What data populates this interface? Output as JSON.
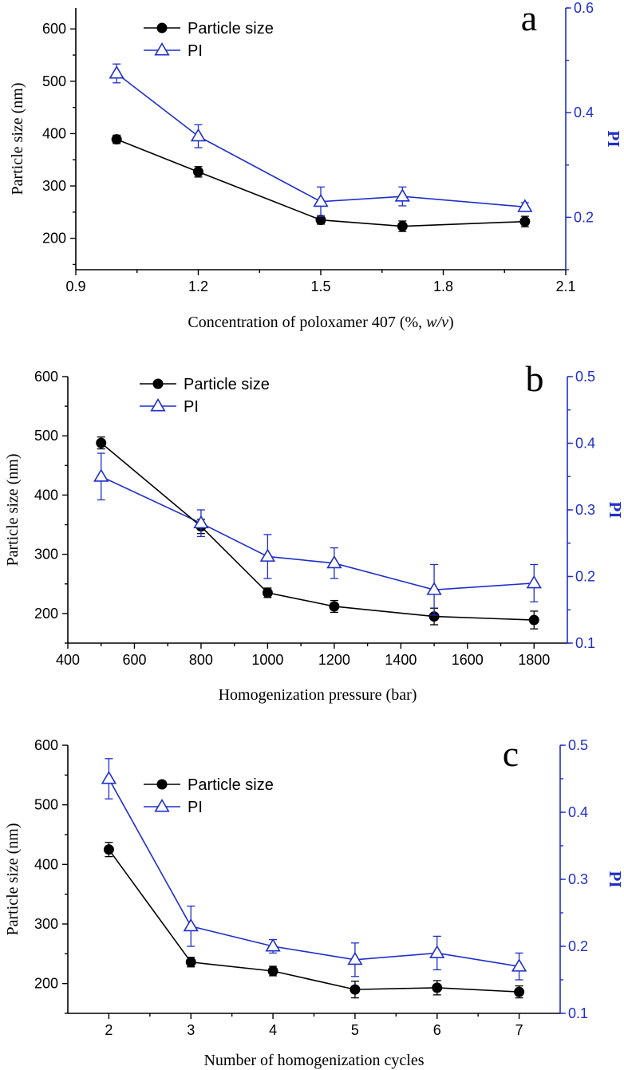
{
  "chart_data": [
    {
      "type": "line",
      "panel_label": "a",
      "xlabel_parts": [
        "Concentration of poloxamer 407 (%, ",
        "w/v",
        ")"
      ],
      "ylabel": "Particle size (nm)",
      "y2label": "PI",
      "xlim": [
        0.9,
        2.1
      ],
      "ylim": [
        140,
        640
      ],
      "y2lim": [
        0.1,
        0.6
      ],
      "x_ticks": [
        "0.9",
        "1.2",
        "1.5",
        "1.8",
        "2.1"
      ],
      "y_ticks": [
        "200",
        "300",
        "400",
        "500",
        "600"
      ],
      "y2_ticks": [
        "0.2",
        "0.4",
        "0.6"
      ],
      "x": [
        1.0,
        1.2,
        1.5,
        1.7,
        2.0
      ],
      "series": [
        {
          "name": "Particle size",
          "axis": "left",
          "values": [
            389,
            327,
            235,
            223,
            232
          ],
          "errors": [
            8,
            10,
            8,
            10,
            10
          ]
        },
        {
          "name": "PI",
          "axis": "right",
          "values": [
            0.475,
            0.355,
            0.23,
            0.24,
            0.22
          ],
          "errors": [
            0.018,
            0.022,
            0.028,
            0.018,
            0.008
          ]
        }
      ],
      "legend": [
        "Particle size",
        "PI"
      ]
    },
    {
      "type": "line",
      "panel_label": "b",
      "xlabel_parts": [
        "Homogenization pressure (bar)"
      ],
      "ylabel": "Particle size (nm)",
      "y2label": "PI",
      "xlim": [
        400,
        1900
      ],
      "ylim": [
        150,
        600
      ],
      "y2lim": [
        0.1,
        0.5
      ],
      "x_ticks": [
        "400",
        "600",
        "800",
        "1000",
        "1200",
        "1400",
        "1600",
        "1800"
      ],
      "y_ticks": [
        "200",
        "300",
        "400",
        "500",
        "600"
      ],
      "y2_ticks": [
        "0.1",
        "0.2",
        "0.3",
        "0.4",
        "0.5"
      ],
      "x": [
        500,
        800,
        1000,
        1200,
        1500,
        1800
      ],
      "series": [
        {
          "name": "Particle size",
          "axis": "left",
          "values": [
            488,
            347,
            235,
            212,
            195,
            189
          ],
          "errors": [
            10,
            12,
            8,
            10,
            14,
            15
          ]
        },
        {
          "name": "PI",
          "axis": "right",
          "values": [
            0.35,
            0.28,
            0.23,
            0.22,
            0.18,
            0.19
          ],
          "errors": [
            0.035,
            0.02,
            0.033,
            0.023,
            0.038,
            0.028
          ]
        }
      ],
      "legend": [
        "Particle size",
        "PI"
      ]
    },
    {
      "type": "line",
      "panel_label": "c",
      "xlabel_parts": [
        "Number of homogenization cycles"
      ],
      "ylabel": "Particle size (nm)",
      "y2label": "PI",
      "xlim": [
        1.5,
        7.5
      ],
      "ylim": [
        150,
        600
      ],
      "y2lim": [
        0.1,
        0.5
      ],
      "x_ticks": [
        "2",
        "3",
        "4",
        "5",
        "6",
        "7"
      ],
      "y_ticks": [
        "200",
        "300",
        "400",
        "500",
        "600"
      ],
      "y2_ticks": [
        "0.1",
        "0.2",
        "0.3",
        "0.4",
        "0.5"
      ],
      "x": [
        2,
        3,
        4,
        5,
        6,
        7
      ],
      "series": [
        {
          "name": "Particle size",
          "axis": "left",
          "values": [
            425,
            236,
            221,
            190,
            193,
            186
          ],
          "errors": [
            12,
            8,
            8,
            14,
            12,
            10
          ]
        },
        {
          "name": "PI",
          "axis": "right",
          "values": [
            0.45,
            0.23,
            0.2,
            0.18,
            0.19,
            0.17
          ],
          "errors": [
            0.03,
            0.03,
            0.01,
            0.025,
            0.025,
            0.02
          ]
        }
      ],
      "legend": [
        "Particle size",
        "PI"
      ]
    }
  ]
}
